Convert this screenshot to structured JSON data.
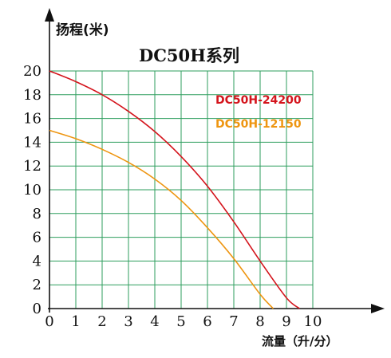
{
  "chart_data": {
    "type": "line",
    "title": "DC50H系列",
    "ylabel": "扬程(米)",
    "xlabel": "流量（升/分）",
    "xlim": [
      0,
      10
    ],
    "ylim": [
      0,
      20
    ],
    "xticks": [
      0,
      1,
      2,
      3,
      4,
      5,
      6,
      7,
      8,
      9,
      10
    ],
    "yticks": [
      0,
      2,
      4,
      6,
      8,
      10,
      12,
      14,
      16,
      18,
      20
    ],
    "grid": true,
    "grid_color": "#2e9e5e",
    "legend_position": "top-right",
    "series": [
      {
        "name": "DC50H-24200",
        "color": "#d4141c",
        "x": [
          0,
          1,
          2,
          3,
          4,
          5,
          6,
          7,
          8,
          9,
          9.5
        ],
        "y": [
          20,
          19.1,
          18.0,
          16.6,
          14.9,
          12.8,
          10.3,
          7.3,
          4.0,
          0.9,
          0
        ]
      },
      {
        "name": "DC50H-12150",
        "color": "#ee9510",
        "x": [
          0,
          1,
          2,
          3,
          4,
          5,
          6,
          7,
          8,
          8.5
        ],
        "y": [
          15,
          14.3,
          13.4,
          12.3,
          10.9,
          9.1,
          6.8,
          4.2,
          1.2,
          0
        ]
      }
    ]
  }
}
